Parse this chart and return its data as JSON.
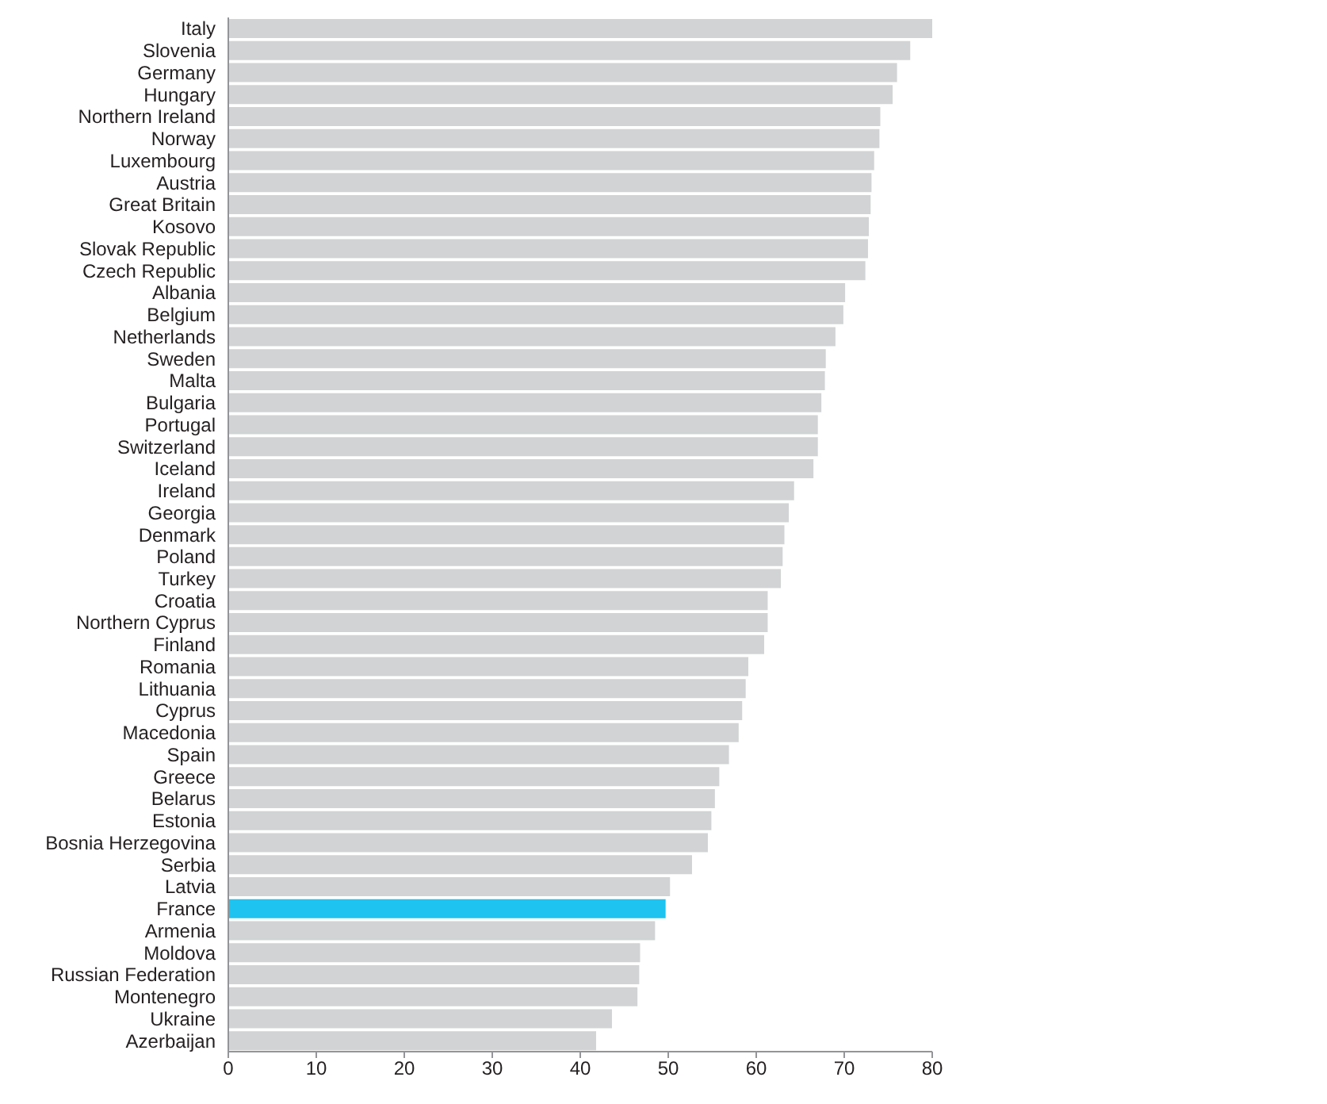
{
  "chart_data": {
    "type": "bar",
    "orientation": "horizontal",
    "categories": [
      "Italy",
      "Slovenia",
      "Germany",
      "Hungary",
      "Northern Ireland",
      "Norway",
      "Luxembourg",
      "Austria",
      "Great Britain",
      "Kosovo",
      "Slovak Republic",
      "Czech Republic",
      "Albania",
      "Belgium",
      "Netherlands",
      "Sweden",
      "Malta",
      "Bulgaria",
      "Portugal",
      "Switzerland",
      "Iceland",
      "Ireland",
      "Georgia",
      "Denmark",
      "Poland",
      "Turkey",
      "Croatia",
      "Northern Cyprus",
      "Finland",
      "Romania",
      "Lithuania",
      "Cyprus",
      "Macedonia",
      "Spain",
      "Greece",
      "Belarus",
      "Estonia",
      "Bosnia Herzegovina",
      "Serbia",
      "Latvia",
      "France",
      "Armenia",
      "Moldova",
      "Russian Federation",
      "Montenegro",
      "Ukraine",
      "Azerbaijan"
    ],
    "values": [
      80,
      77.5,
      76.0,
      75.5,
      74.1,
      74.0,
      73.4,
      73.1,
      73.0,
      72.8,
      72.7,
      72.4,
      70.1,
      69.9,
      69.0,
      67.9,
      67.8,
      67.4,
      67.0,
      67.0,
      66.5,
      64.3,
      63.7,
      63.2,
      63.0,
      62.8,
      61.3,
      61.3,
      60.9,
      59.1,
      58.8,
      58.4,
      58.0,
      56.9,
      55.8,
      55.3,
      54.9,
      54.5,
      52.7,
      50.2,
      49.7,
      48.5,
      46.8,
      46.7,
      46.5,
      43.6,
      41.8
    ],
    "colors": [
      "#d1d3d4",
      "#d1d3d4",
      "#d1d3d4",
      "#d1d3d4",
      "#d1d3d4",
      "#d1d3d4",
      "#d1d3d4",
      "#d1d3d4",
      "#d1d3d4",
      "#d1d3d4",
      "#d1d3d4",
      "#d1d3d4",
      "#d1d3d4",
      "#d1d3d4",
      "#d1d3d4",
      "#d1d3d4",
      "#d1d3d4",
      "#d1d3d4",
      "#d1d3d4",
      "#d1d3d4",
      "#d1d3d4",
      "#d1d3d4",
      "#d1d3d4",
      "#d1d3d4",
      "#d1d3d4",
      "#d1d3d4",
      "#d1d3d4",
      "#d1d3d4",
      "#d1d3d4",
      "#d1d3d4",
      "#d1d3d4",
      "#d1d3d4",
      "#d1d3d4",
      "#d1d3d4",
      "#d1d3d4",
      "#d1d3d4",
      "#d1d3d4",
      "#d1d3d4",
      "#d1d3d4",
      "#d1d3d4",
      "#1ec3f0",
      "#d1d3d4",
      "#d1d3d4",
      "#d1d3d4",
      "#d1d3d4",
      "#d1d3d4",
      "#d1d3d4"
    ],
    "xlim": [
      0,
      80
    ],
    "xticks": [
      0,
      10,
      20,
      30,
      40,
      50,
      60,
      70,
      80
    ],
    "grid": false,
    "legend": false
  }
}
